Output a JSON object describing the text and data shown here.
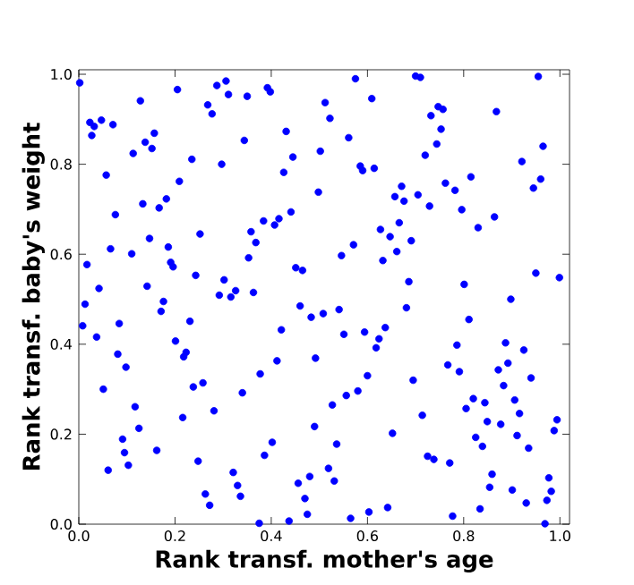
{
  "chart_data": {
    "type": "scatter",
    "xlabel": "Rank transf. mother's age",
    "ylabel": "Rank transf. baby's weight",
    "color": "#0000ff",
    "xlim": [
      0,
      1.02
    ],
    "ylim": [
      0,
      1.01
    ],
    "xticks": [
      {
        "value": 0,
        "label": "0.0"
      },
      {
        "value": 0.2,
        "label": "0.2"
      },
      {
        "value": 0.4,
        "label": "0.4"
      },
      {
        "value": 0.6,
        "label": "0.6"
      },
      {
        "value": 0.8,
        "label": "0.8"
      },
      {
        "value": 1,
        "label": "1.0"
      }
    ],
    "yticks": [
      {
        "value": 0,
        "label": "0.0"
      },
      {
        "value": 0.2,
        "label": "0.2"
      },
      {
        "value": 0.4,
        "label": "0.4"
      },
      {
        "value": 0.6,
        "label": "0.6"
      },
      {
        "value": 0.8,
        "label": "0.8"
      },
      {
        "value": 1,
        "label": "1.0"
      }
    ],
    "x": [
      0.002,
      0.023,
      0.032,
      0.027,
      0.047,
      0.071,
      0.057,
      0.076,
      0.017,
      0.066,
      0.042,
      0.013,
      0.128,
      0.113,
      0.138,
      0.157,
      0.152,
      0.133,
      0.167,
      0.182,
      0.147,
      0.186,
      0.11,
      0.191,
      0.196,
      0.142,
      0.176,
      0.171,
      0.205,
      0.235,
      0.209,
      0.252,
      0.243,
      0.268,
      0.277,
      0.287,
      0.306,
      0.311,
      0.297,
      0.302,
      0.292,
      0.316,
      0.326,
      0.35,
      0.344,
      0.358,
      0.368,
      0.353,
      0.384,
      0.363,
      0.392,
      0.398,
      0.431,
      0.445,
      0.426,
      0.407,
      0.416,
      0.441,
      0.451,
      0.465,
      0.46,
      0.502,
      0.498,
      0.575,
      0.7,
      0.71,
      0.955,
      0.512,
      0.522,
      0.609,
      0.747,
      0.757,
      0.732,
      0.868,
      0.561,
      0.753,
      0.744,
      0.72,
      0.965,
      0.921,
      0.585,
      0.59,
      0.614,
      0.815,
      0.96,
      0.945,
      0.671,
      0.762,
      0.782,
      0.657,
      0.676,
      0.705,
      0.729,
      0.796,
      0.864,
      0.83,
      0.666,
      0.627,
      0.647,
      0.691,
      0.571,
      0.546,
      0.661,
      0.632,
      0.95,
      0.999,
      0.686,
      0.801,
      0.898,
      0.681,
      0.541,
      0.508,
      0.483,
      0.008,
      0.037,
      0.084,
      0.231,
      0.201,
      0.081,
      0.223,
      0.218,
      0.098,
      0.051,
      0.238,
      0.258,
      0.117,
      0.281,
      0.34,
      0.377,
      0.412,
      0.421,
      0.492,
      0.125,
      0.216,
      0.091,
      0.095,
      0.162,
      0.061,
      0.103,
      0.248,
      0.321,
      0.386,
      0.402,
      0.49,
      0.33,
      0.336,
      0.263,
      0.272,
      0.456,
      0.48,
      0.47,
      0.475,
      0.437,
      0.375,
      0.527,
      0.536,
      0.519,
      0.531,
      0.565,
      0.603,
      0.642,
      0.551,
      0.594,
      0.637,
      0.624,
      0.618,
      0.6,
      0.58,
      0.556,
      0.695,
      0.714,
      0.652,
      0.725,
      0.738,
      0.771,
      0.777,
      0.834,
      0.786,
      0.767,
      0.791,
      0.811,
      0.887,
      0.925,
      0.892,
      0.872,
      0.94,
      0.883,
      0.82,
      0.844,
      0.805,
      0.906,
      0.916,
      0.849,
      0.877,
      0.994,
      0.988,
      0.825,
      0.839,
      0.911,
      0.935,
      0.859,
      0.854,
      0.901,
      0.977,
      0.982,
      0.973,
      0.93,
      0.969
    ],
    "values": [
      0.981,
      0.893,
      0.884,
      0.864,
      0.898,
      0.888,
      0.776,
      0.688,
      0.577,
      0.612,
      0.524,
      0.489,
      0.941,
      0.824,
      0.849,
      0.869,
      0.835,
      0.712,
      0.703,
      0.723,
      0.635,
      0.616,
      0.601,
      0.582,
      0.572,
      0.529,
      0.495,
      0.473,
      0.966,
      0.811,
      0.762,
      0.645,
      0.553,
      0.932,
      0.912,
      0.975,
      0.985,
      0.955,
      0.8,
      0.543,
      0.509,
      0.505,
      0.519,
      0.951,
      0.853,
      0.65,
      0.626,
      0.592,
      0.674,
      0.515,
      0.97,
      0.961,
      0.873,
      0.816,
      0.782,
      0.665,
      0.679,
      0.694,
      0.57,
      0.564,
      0.485,
      0.829,
      0.738,
      0.99,
      0.996,
      0.993,
      0.995,
      0.937,
      0.902,
      0.946,
      0.928,
      0.922,
      0.908,
      0.917,
      0.859,
      0.878,
      0.845,
      0.82,
      0.84,
      0.806,
      0.796,
      0.786,
      0.791,
      0.772,
      0.767,
      0.747,
      0.751,
      0.758,
      0.742,
      0.728,
      0.718,
      0.732,
      0.707,
      0.699,
      0.683,
      0.659,
      0.67,
      0.655,
      0.639,
      0.63,
      0.621,
      0.597,
      0.606,
      0.586,
      0.558,
      0.548,
      0.539,
      0.533,
      0.5,
      0.481,
      0.477,
      0.468,
      0.46,
      0.441,
      0.416,
      0.446,
      0.451,
      0.407,
      0.378,
      0.382,
      0.372,
      0.349,
      0.3,
      0.305,
      0.314,
      0.261,
      0.252,
      0.292,
      0.334,
      0.363,
      0.432,
      0.369,
      0.213,
      0.237,
      0.189,
      0.159,
      0.164,
      0.12,
      0.131,
      0.14,
      0.115,
      0.153,
      0.182,
      0.217,
      0.086,
      0.062,
      0.067,
      0.042,
      0.091,
      0.106,
      0.057,
      0.022,
      0.007,
      0.002,
      0.265,
      0.178,
      0.124,
      0.096,
      0.013,
      0.027,
      0.037,
      0.422,
      0.427,
      0.437,
      0.412,
      0.392,
      0.33,
      0.296,
      0.286,
      0.32,
      0.242,
      0.202,
      0.151,
      0.144,
      0.136,
      0.018,
      0.034,
      0.398,
      0.354,
      0.339,
      0.455,
      0.403,
      0.387,
      0.358,
      0.343,
      0.325,
      0.308,
      0.279,
      0.27,
      0.257,
      0.276,
      0.246,
      0.228,
      0.222,
      0.232,
      0.208,
      0.193,
      0.173,
      0.197,
      0.169,
      0.111,
      0.082,
      0.076,
      0.103,
      0.073,
      0.053,
      0.047,
      0.001
    ]
  }
}
